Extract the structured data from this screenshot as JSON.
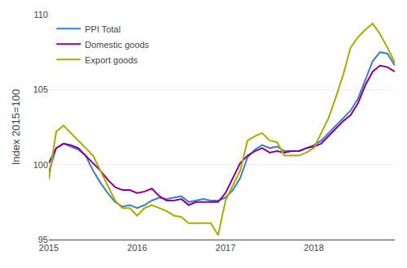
{
  "chart_data": {
    "type": "line",
    "ylabel": "Index 2015=100",
    "categories": [
      "2015",
      null,
      null,
      null,
      null,
      null,
      null,
      null,
      null,
      null,
      null,
      null,
      "2016",
      null,
      null,
      null,
      null,
      null,
      null,
      null,
      null,
      null,
      null,
      null,
      "2017",
      null,
      null,
      null,
      null,
      null,
      null,
      null,
      null,
      null,
      null,
      null,
      "2018",
      null,
      null,
      null,
      null,
      null,
      null,
      null,
      null,
      null,
      null,
      null
    ],
    "series": [
      {
        "name": "PPI Total",
        "color": "#3d7ebf",
        "values": [
          99.5,
          101.1,
          101.4,
          101.2,
          101.0,
          100.6,
          99.6,
          98.8,
          98.1,
          97.5,
          97.2,
          97.3,
          97.1,
          97.3,
          97.6,
          97.8,
          97.7,
          97.8,
          97.9,
          97.5,
          97.6,
          97.7,
          97.6,
          97.6,
          97.8,
          98.3,
          99.1,
          100.5,
          101.0,
          101.3,
          101.1,
          101.2,
          100.9,
          100.9,
          100.9,
          101.1,
          101.3,
          101.6,
          102.1,
          102.6,
          103.1,
          103.6,
          104.4,
          105.6,
          106.9,
          107.5,
          107.4,
          106.6
        ]
      },
      {
        "name": "Domestic goods",
        "color": "#8B008B",
        "values": [
          100.1,
          101.1,
          101.4,
          101.3,
          101.1,
          100.6,
          100.1,
          99.6,
          99.0,
          98.5,
          98.3,
          98.3,
          98.1,
          98.2,
          98.4,
          97.9,
          97.6,
          97.6,
          97.7,
          97.3,
          97.5,
          97.5,
          97.5,
          97.5,
          98.1,
          99.1,
          100.1,
          100.6,
          100.9,
          101.1,
          100.8,
          100.9,
          100.8,
          100.9,
          100.9,
          101.1,
          101.2,
          101.4,
          101.9,
          102.4,
          102.9,
          103.3,
          104.1,
          105.3,
          106.2,
          106.6,
          106.5,
          106.2
        ]
      },
      {
        "name": "Export goods",
        "color": "#aaaa00",
        "values": [
          99.0,
          102.2,
          102.6,
          102.1,
          101.6,
          101.1,
          100.6,
          99.6,
          98.6,
          97.6,
          97.1,
          97.1,
          96.6,
          97.1,
          97.3,
          97.1,
          96.9,
          96.6,
          96.5,
          96.1,
          96.1,
          96.1,
          96.1,
          95.3,
          97.6,
          98.6,
          99.6,
          101.6,
          101.9,
          102.1,
          101.6,
          101.5,
          100.6,
          100.6,
          100.6,
          100.8,
          101.1,
          102.1,
          103.1,
          104.5,
          106.0,
          107.8,
          108.5,
          109.0,
          109.4,
          108.7,
          107.8,
          106.8
        ]
      }
    ],
    "ylim": [
      95,
      110
    ],
    "yticks": [
      95,
      100,
      105,
      110
    ],
    "grid": true,
    "legend": "upper left"
  }
}
